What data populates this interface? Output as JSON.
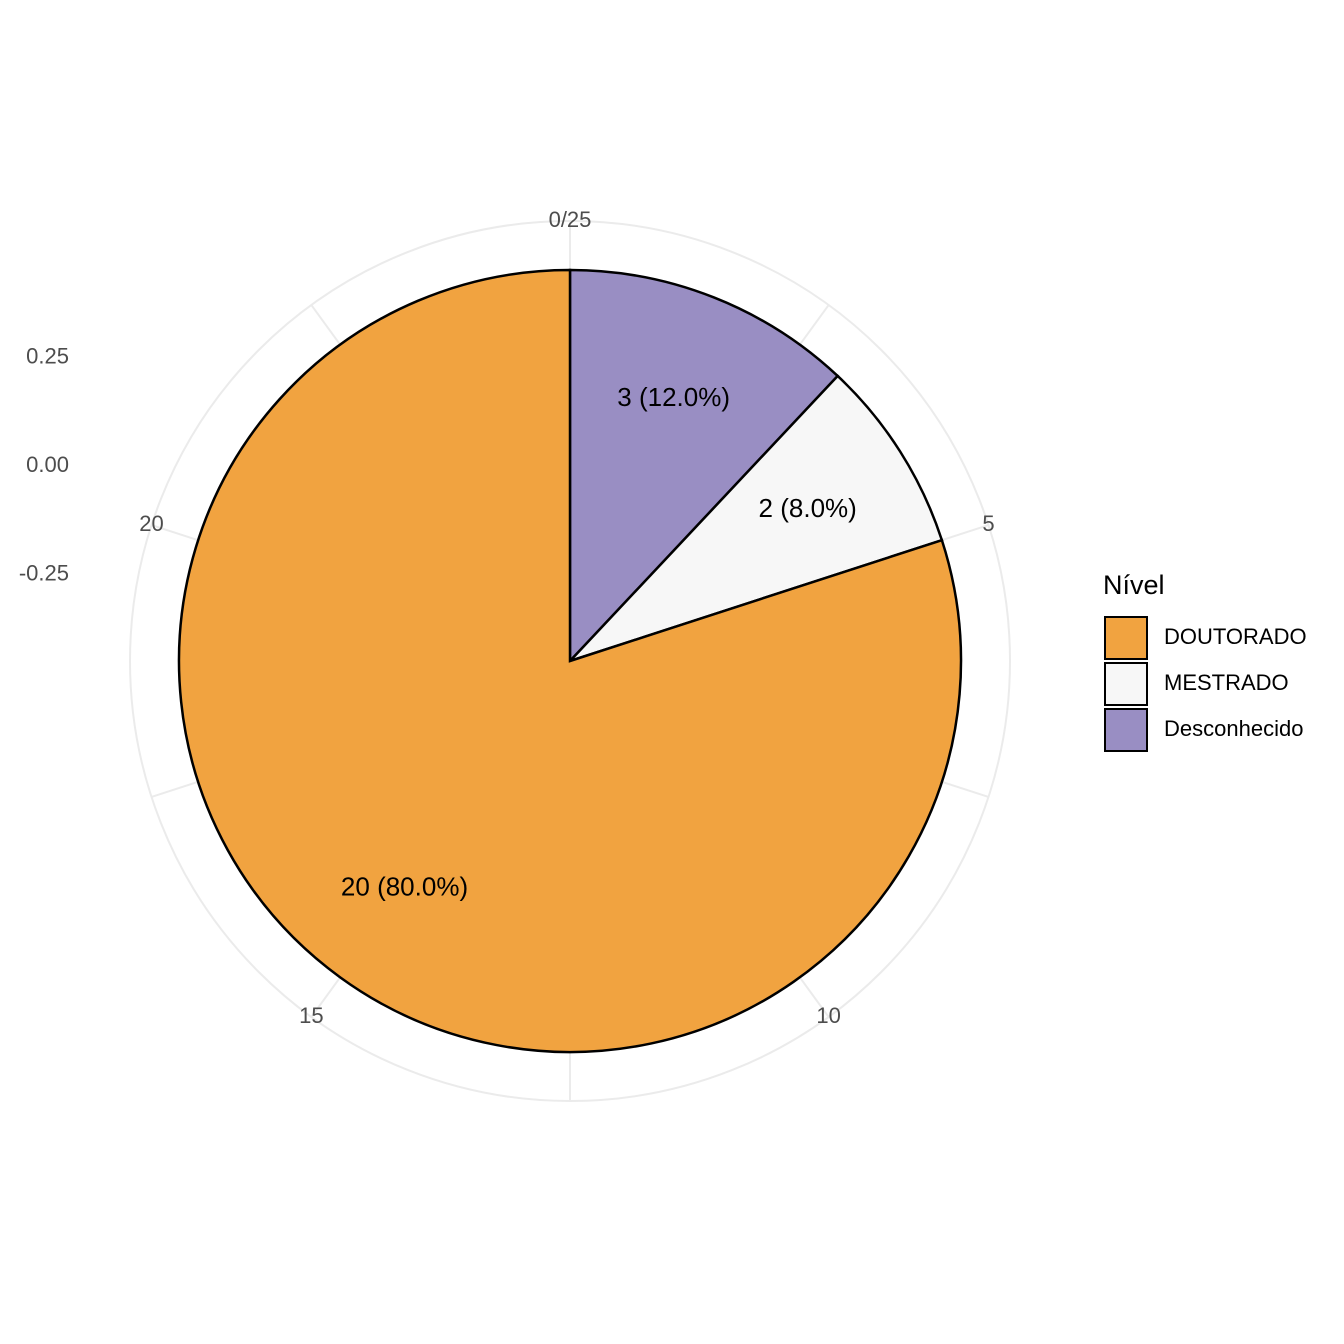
{
  "chart_data": {
    "type": "pie",
    "categories": [
      "DOUTORADO",
      "MESTRADO",
      "Desconhecido"
    ],
    "values": [
      20,
      2,
      3
    ],
    "value_labels": [
      "20 (80.0%)",
      "2 (8.0%)",
      "3 (12.0%)"
    ],
    "colors": [
      "#F1A340",
      "#F7F7F7",
      "#998EC3"
    ],
    "legend_title": "Nível",
    "legend": "right",
    "xlim": [
      0,
      25
    ],
    "xticks": [
      {
        "value": 0,
        "label": "0/25"
      },
      5,
      10,
      15,
      20
    ],
    "ylim": [
      -0.5,
      0.5
    ],
    "yticks": [
      -0.25,
      {
        "value": 0,
        "label": "0.00"
      },
      0.25
    ],
    "grid": true
  }
}
